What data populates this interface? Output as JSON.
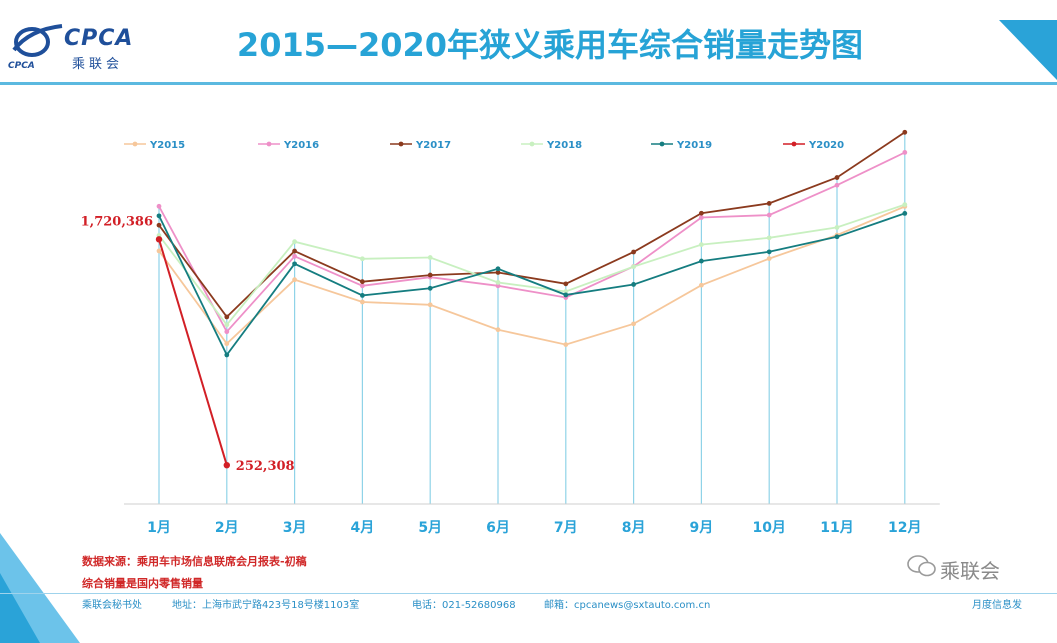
{
  "header": {
    "title": "2015—2020年狭义乘用车综合销量走势图",
    "logo_text": "CPCA",
    "logo_cn": "乘联会",
    "logo_small": "CPCA"
  },
  "notes": {
    "source": "数据来源：乘用车市场信息联席会月报表-初稿",
    "definition": "综合销量是国内零售销量"
  },
  "footer": {
    "org": "乘联会秘书处",
    "address": "地址：上海市武宁路423号18号楼1103室",
    "phone": "电话：021-52680968",
    "email": "邮箱：cpcanews@sxtauto.com.cn",
    "right": "月度信息发"
  },
  "watermark": {
    "label": "乘联会"
  },
  "chart_data": {
    "type": "line",
    "title": "",
    "categories": [
      "1月",
      "2月",
      "3月",
      "4月",
      "5月",
      "6月",
      "7月",
      "8月",
      "9月",
      "10月",
      "11月",
      "12月"
    ],
    "ylim": [
      0,
      2600000
    ],
    "grid": "vertical drop lines at each month",
    "legend_position": "top",
    "series": [
      {
        "name": "Y2015",
        "color": "#f6c79b",
        "values": [
          1645000,
          1042000,
          1458000,
          1313000,
          1295000,
          1133000,
          1036000,
          1171000,
          1422000,
          1595000,
          1748000,
          1934000
        ]
      },
      {
        "name": "Y2016",
        "color": "#ee90c8",
        "values": [
          1935000,
          1120000,
          1610000,
          1418000,
          1474000,
          1418000,
          1342000,
          1544000,
          1862000,
          1878000,
          2072000,
          2285000
        ]
      },
      {
        "name": "Y2017",
        "color": "#8b3a1e",
        "values": [
          1812000,
          1216000,
          1644000,
          1445000,
          1488000,
          1505000,
          1431000,
          1638000,
          1890000,
          1954000,
          2122000,
          2416000
        ]
      },
      {
        "name": "Y2018",
        "color": "#c8f0c0",
        "values": [
          1746000,
          1165000,
          1705000,
          1594000,
          1602000,
          1440000,
          1381000,
          1543000,
          1686000,
          1730000,
          1798000,
          1946000
        ]
      },
      {
        "name": "Y2019",
        "color": "#157d80",
        "values": [
          1873000,
          969000,
          1561000,
          1356000,
          1402000,
          1529000,
          1359000,
          1427000,
          1579000,
          1639000,
          1737000,
          1889000
        ]
      },
      {
        "name": "Y2020",
        "color": "#d21f26",
        "values": [
          1720386,
          252308,
          null,
          null,
          null,
          null,
          null,
          null,
          null,
          null,
          null,
          null
        ]
      }
    ],
    "data_labels": [
      {
        "series": "Y2020",
        "category": "1月",
        "text": "1,720,386"
      },
      {
        "series": "Y2020",
        "category": "2月",
        "text": "252,308"
      }
    ]
  }
}
